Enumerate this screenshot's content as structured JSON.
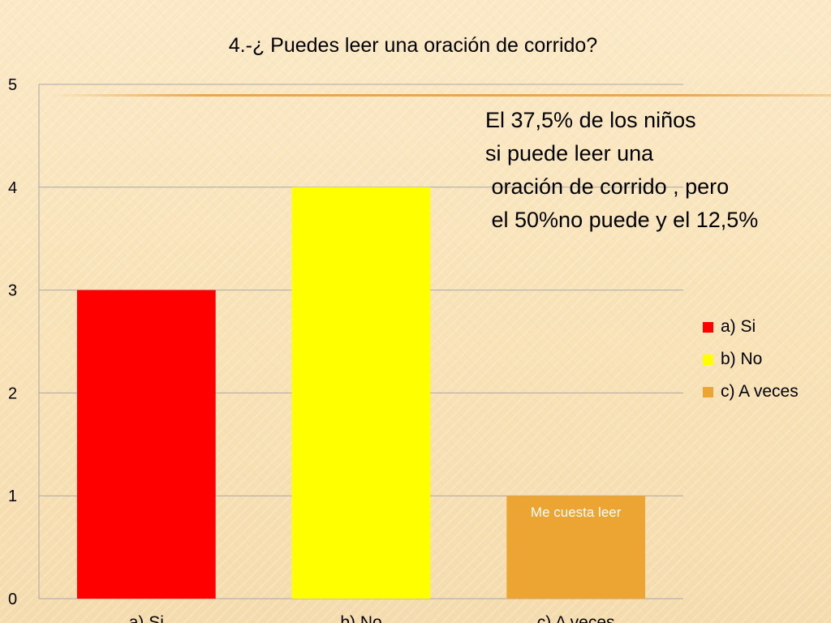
{
  "chart_data": {
    "type": "bar",
    "title": "4.-¿ Puedes leer una oración de corrido?",
    "categories": [
      "a) Si",
      "b) No",
      "c) A veces"
    ],
    "values": [
      3,
      4,
      1
    ],
    "colors": [
      "#ff0000",
      "#ffff00",
      "#eca433"
    ],
    "ylim": [
      0,
      5
    ],
    "yticks": [
      "0",
      "1",
      "2",
      "3",
      "4",
      "5"
    ],
    "grid": true,
    "legend_position": "right",
    "legend": [
      "a) Si",
      "b) No",
      "c) A veces"
    ],
    "data_label": {
      "category_index": 2,
      "text": "Me cuesta leer"
    },
    "annotation_lines": [
      "El 37,5% de los niños",
      "si puede leer una",
      " oración de corrido , pero",
      " el 50%no puede y el 12,5%"
    ]
  }
}
